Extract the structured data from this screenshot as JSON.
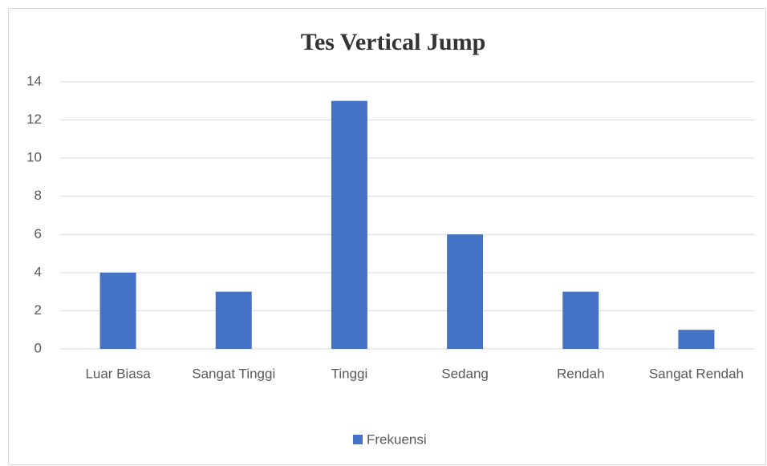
{
  "chart_data": {
    "type": "bar",
    "title": "Tes Vertical Jump",
    "categories": [
      "Luar Biasa",
      "Sangat Tinggi",
      "Tinggi",
      "Sedang",
      "Rendah",
      "Sangat Rendah"
    ],
    "series": [
      {
        "name": "Frekuensi",
        "color": "#4472c4",
        "values": [
          4,
          3,
          13,
          6,
          3,
          1
        ]
      }
    ],
    "ylim": [
      0,
      14
    ],
    "yticks": [
      0,
      2,
      4,
      6,
      8,
      10,
      12,
      14
    ],
    "grid": true,
    "legend": "bottom"
  }
}
